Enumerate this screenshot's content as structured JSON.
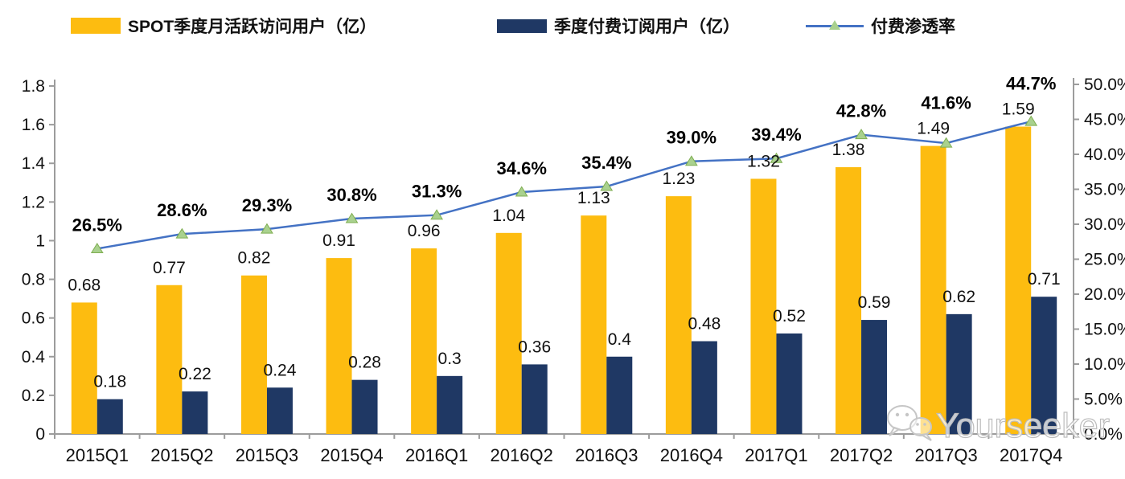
{
  "watermark": {
    "icon": "wechat-icon",
    "text": "Yourseeker"
  },
  "chart_data": {
    "type": "combo-bar-line",
    "title": "",
    "categories": [
      "2015Q1",
      "2015Q2",
      "2015Q3",
      "2015Q4",
      "2016Q1",
      "2016Q2",
      "2016Q3",
      "2016Q4",
      "2017Q1",
      "2017Q2",
      "2017Q3",
      "2017Q4"
    ],
    "series": [
      {
        "name": "SPOT季度月活跃访问用户（亿）",
        "type": "bar",
        "axis": "left",
        "color": "#FDBC10",
        "values": [
          0.68,
          0.77,
          0.82,
          0.91,
          0.96,
          1.04,
          1.13,
          1.23,
          1.32,
          1.38,
          1.49,
          1.59
        ],
        "labels": [
          "0.68",
          "0.77",
          "0.82",
          "0.91",
          "0.96",
          "1.04",
          "1.13",
          "1.23",
          "1.32",
          "1.38",
          "1.49",
          "1.59"
        ]
      },
      {
        "name": "季度付费订阅用户（亿）",
        "type": "bar",
        "axis": "left",
        "color": "#1F3864",
        "values": [
          0.18,
          0.22,
          0.24,
          0.28,
          0.3,
          0.36,
          0.4,
          0.48,
          0.52,
          0.59,
          0.62,
          0.71
        ],
        "labels": [
          "0.18",
          "0.22",
          "0.24",
          "0.28",
          "0.3",
          "0.36",
          "0.4",
          "0.48",
          "0.52",
          "0.59",
          "0.62",
          "0.71"
        ]
      },
      {
        "name": "付费渗透率",
        "type": "line",
        "axis": "right",
        "color": "#4472C4",
        "marker": "triangle",
        "marker_color": "#A9D18E",
        "marker_edge": "#7FAE51",
        "values": [
          26.5,
          28.6,
          29.3,
          30.8,
          31.3,
          34.6,
          35.4,
          39.0,
          39.4,
          42.8,
          41.6,
          44.7
        ],
        "labels": [
          "26.5%",
          "28.6%",
          "29.3%",
          "30.8%",
          "31.3%",
          "34.6%",
          "35.4%",
          "39.0%",
          "39.4%",
          "42.8%",
          "41.6%",
          "44.7%"
        ]
      }
    ],
    "left_axis": {
      "min": 0,
      "max": 1.8,
      "step": 0.2,
      "ticks": [
        "0",
        "0.2",
        "0.4",
        "0.6",
        "0.8",
        "1",
        "1.2",
        "1.4",
        "1.6",
        "1.8"
      ]
    },
    "right_axis": {
      "min": 0,
      "max": 50,
      "step": 5,
      "ticks": [
        "0.0%",
        "5.0%",
        "10.0%",
        "15.0%",
        "20.0%",
        "25.0%",
        "30.0%",
        "35.0%",
        "40.0%",
        "45.0%",
        "50.0%"
      ]
    },
    "legend_position": "top",
    "grid": false,
    "axis_color": "#9c9c9c",
    "label_color": "#111111"
  }
}
